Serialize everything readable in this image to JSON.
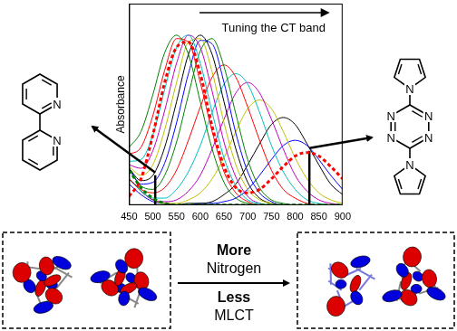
{
  "chart_data": {
    "type": "line",
    "annotation": "Tuning the CT band",
    "y_label": "Absorbance",
    "x": [
      450,
      475,
      500,
      525,
      550,
      575,
      600,
      625,
      650,
      675,
      700,
      725,
      750,
      775,
      800,
      825,
      850,
      875,
      900
    ],
    "xlim": [
      450,
      900
    ],
    "xticks": [
      450,
      500,
      550,
      600,
      650,
      700,
      750,
      800,
      850,
      900
    ],
    "ylim": [
      0,
      1.15
    ],
    "grid": false,
    "tick_labels": "x",
    "series": [
      {
        "color": "#008000",
        "values": [
          0.33,
          0.42,
          0.63,
          0.87,
          0.97,
          0.86,
          0.59,
          0.32,
          0.13,
          0.04,
          0.01,
          0,
          0,
          0,
          0,
          0,
          0,
          0,
          0
        ]
      },
      {
        "color": "#ff0000",
        "values": [
          0.29,
          0.33,
          0.51,
          0.77,
          0.95,
          0.93,
          0.7,
          0.42,
          0.19,
          0.07,
          0.02,
          0,
          0,
          0,
          0,
          0,
          0,
          0,
          0
        ]
      },
      {
        "color": "#00bfbf",
        "values": [
          0.25,
          0.26,
          0.4,
          0.66,
          0.9,
          0.97,
          0.81,
          0.53,
          0.27,
          0.11,
          0.03,
          0.01,
          0,
          0,
          0,
          0,
          0,
          0,
          0
        ]
      },
      {
        "color": "#bf00bf",
        "values": [
          0.23,
          0.21,
          0.31,
          0.54,
          0.81,
          0.97,
          0.9,
          0.65,
          0.36,
          0.16,
          0.05,
          0.01,
          0,
          0,
          0,
          0,
          0,
          0,
          0
        ]
      },
      {
        "color": "#bfbf00",
        "values": [
          0.22,
          0.17,
          0.23,
          0.43,
          0.7,
          0.93,
          0.95,
          0.76,
          0.47,
          0.23,
          0.09,
          0.03,
          0.01,
          0,
          0,
          0,
          0,
          0,
          0
        ]
      },
      {
        "color": "#000000",
        "values": [
          0.21,
          0.14,
          0.17,
          0.33,
          0.59,
          0.86,
          0.97,
          0.86,
          0.59,
          0.32,
          0.13,
          0.04,
          0.01,
          0,
          0,
          0,
          0,
          0,
          0
        ]
      },
      {
        "color": "#0000ff",
        "values": [
          0.21,
          0.12,
          0.13,
          0.24,
          0.47,
          0.75,
          0.94,
          0.92,
          0.7,
          0.41,
          0.19,
          0.07,
          0.02,
          0,
          0,
          0,
          0,
          0,
          0
        ]
      },
      {
        "color": "#008000",
        "values": [
          0.2,
          0.11,
          0.09,
          0.17,
          0.36,
          0.63,
          0.88,
          0.95,
          0.79,
          0.52,
          0.26,
          0.1,
          0.03,
          0.01,
          0,
          0,
          0,
          0,
          0
        ]
      },
      {
        "color": "#ff0000",
        "values": [
          0.15,
          0.09,
          0.07,
          0.1,
          0.2,
          0.37,
          0.56,
          0.73,
          0.8,
          0.73,
          0.56,
          0.37,
          0.2,
          0.09,
          0.04,
          0.01,
          0,
          0,
          0
        ]
      },
      {
        "color": "#00bfbf",
        "values": [
          0.15,
          0.08,
          0.04,
          0.04,
          0.09,
          0.19,
          0.34,
          0.53,
          0.69,
          0.75,
          0.69,
          0.53,
          0.34,
          0.19,
          0.09,
          0.03,
          0.01,
          0,
          0
        ]
      },
      {
        "color": "#bf00bf",
        "values": [
          0.15,
          0.08,
          0.03,
          0.02,
          0.03,
          0.08,
          0.17,
          0.32,
          0.49,
          0.64,
          0.7,
          0.64,
          0.49,
          0.32,
          0.17,
          0.08,
          0.03,
          0.01,
          0
        ]
      },
      {
        "color": "#bfbf00",
        "values": [
          0.15,
          0.08,
          0.03,
          0.01,
          0.01,
          0.03,
          0.07,
          0.15,
          0.27,
          0.42,
          0.55,
          0.6,
          0.55,
          0.42,
          0.27,
          0.15,
          0.07,
          0.03,
          0.01
        ]
      },
      {
        "color": "#000000",
        "values": [
          0.15,
          0.08,
          0.03,
          0.01,
          0,
          0.01,
          0.01,
          0.02,
          0.06,
          0.12,
          0.23,
          0.35,
          0.46,
          0.5,
          0.46,
          0.35,
          0.23,
          0.12,
          0.06
        ]
      },
      {
        "color": "#0000ff",
        "values": [
          0.12,
          0.06,
          0.02,
          0.01,
          0,
          0,
          0.01,
          0.01,
          0.02,
          0.04,
          0.09,
          0.17,
          0.26,
          0.34,
          0.37,
          0.34,
          0.26,
          0.17,
          0.09
        ]
      },
      {
        "color": "#ff0000",
        "line_style": "dashed",
        "values": [
          0.05,
          0.15,
          0.4,
          0.7,
          0.9,
          0.93,
          0.75,
          0.45,
          0.22,
          0.1,
          0.07,
          0.09,
          0.15,
          0.22,
          0.28,
          0.3,
          0.28,
          0.22,
          0.15
        ]
      },
      {
        "color": "#008000",
        "line_style": "dashed",
        "values": [
          0.2,
          0.1,
          0.04,
          0.01,
          0,
          0,
          0,
          0,
          0,
          0,
          0,
          0,
          0,
          0,
          0,
          0,
          0,
          0,
          0
        ]
      }
    ],
    "transitions": {
      "x": [
        505,
        830
      ],
      "values": [
        0.17,
        0.31
      ],
      "color": "#000000"
    },
    "legend": false
  },
  "molecules": [
    {
      "atoms": [
        "N",
        "N"
      ]
    },
    {
      "atoms": [
        "N",
        "N",
        "N",
        "N",
        "N",
        "N"
      ]
    }
  ],
  "comparison": {
    "top": [
      "More",
      "Nitrogen"
    ],
    "bottom": [
      "Less",
      "MLCT"
    ]
  }
}
